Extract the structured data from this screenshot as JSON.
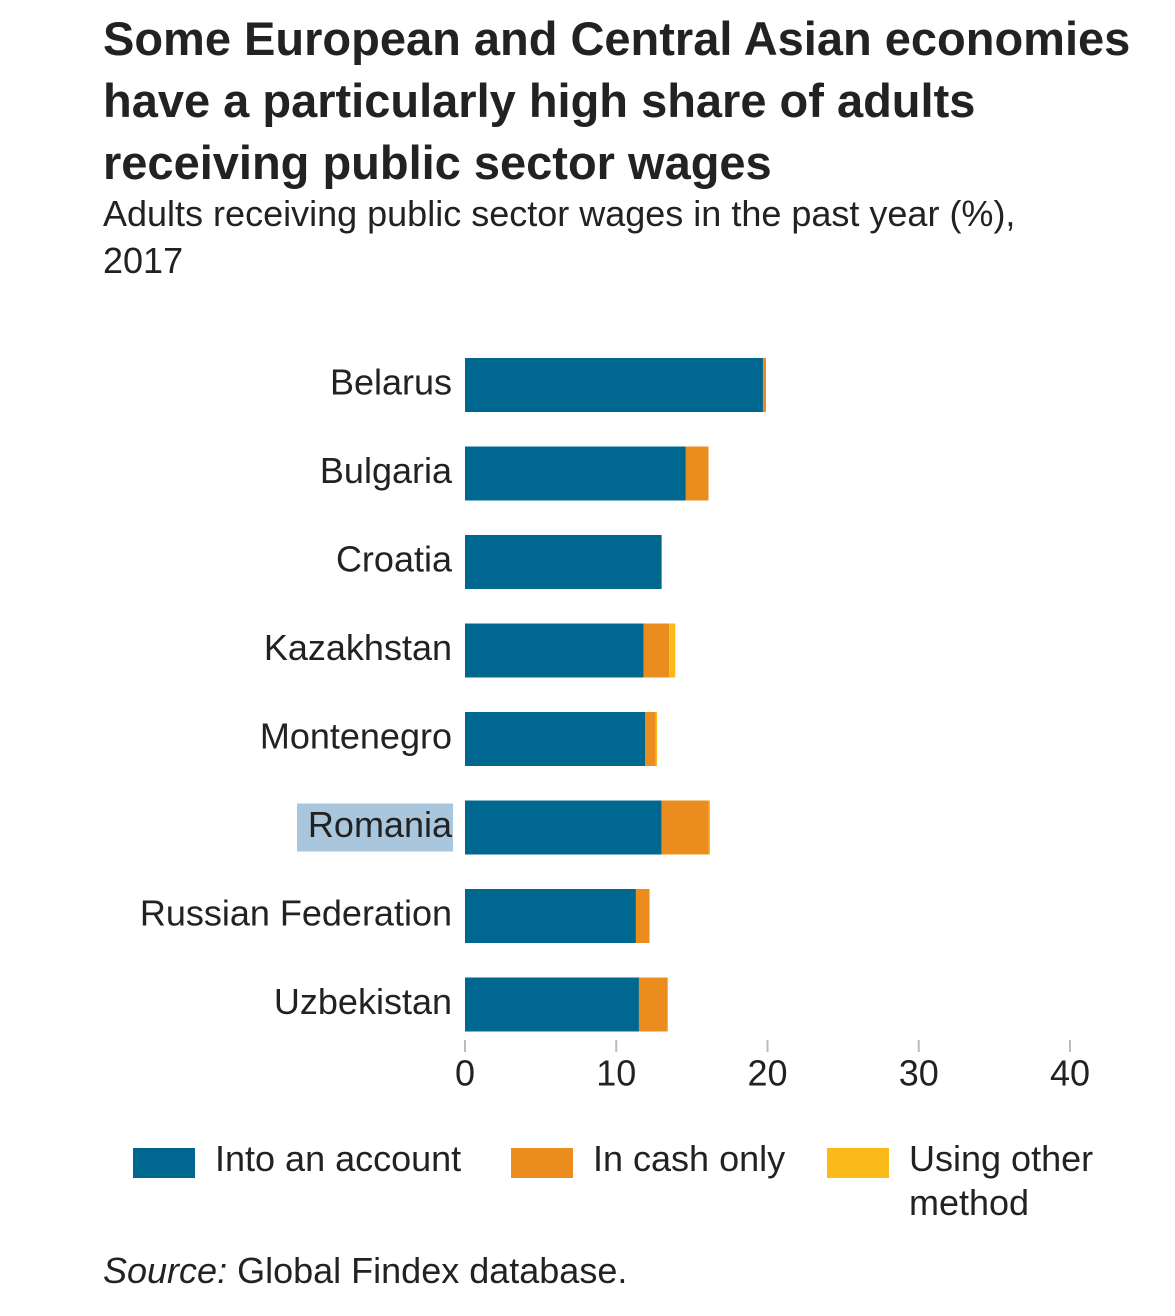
{
  "chart_data": {
    "type": "stacked-bar-horizontal",
    "title": "Some European and Central Asian economies have a particularly high share of adults receiving public sector wages",
    "subtitle": "Adults receiving public sector wages in the past year (%), 2017",
    "categories": [
      "Belarus",
      "Bulgaria",
      "Croatia",
      "Kazakhstan",
      "Montenegro",
      "Romania",
      "Russian Federation",
      "Uzbekistan"
    ],
    "series": [
      {
        "name": "Into an account",
        "color": "#006890",
        "values": [
          19.7,
          14.6,
          13.0,
          11.8,
          11.9,
          13.0,
          11.3,
          11.5
        ]
      },
      {
        "name": "In cash only",
        "color": "#eb8c1e",
        "values": [
          0.2,
          1.5,
          0,
          1.7,
          0.7,
          3.1,
          0.9,
          1.9
        ]
      },
      {
        "name": "Using other method",
        "color": "#fbb91a",
        "values": [
          0,
          0,
          0,
          0.4,
          0.1,
          0.1,
          0,
          0
        ]
      }
    ],
    "xlim": [
      0,
      40
    ],
    "xticks": [
      0,
      10,
      20,
      30,
      40
    ],
    "source_label": "Source:",
    "source_text": "Global Findex database."
  }
}
